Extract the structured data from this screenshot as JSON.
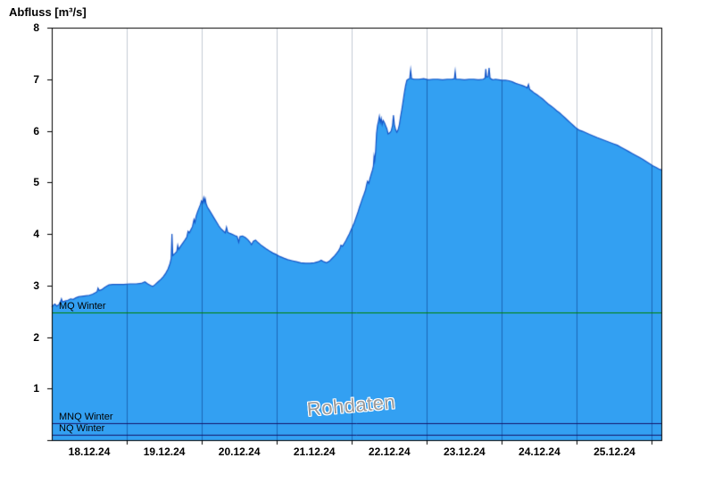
{
  "chart_data": {
    "type": "area",
    "title": "Abfluss [m³/s]",
    "watermark": "Rohdaten",
    "ylabel": "Abfluss [m³/s]",
    "ylim": [
      0,
      8
    ],
    "yticks": [
      0,
      1,
      2,
      3,
      4,
      5,
      6,
      7,
      8
    ],
    "grid": "vertical-daily",
    "legend_position": "none",
    "x_range_hours": [
      0,
      195
    ],
    "x_day_labels": [
      "18.12.24",
      "19.12.24",
      "20.12.24",
      "21.12.24",
      "22.12.24",
      "23.12.24",
      "24.12.24",
      "25.12.24"
    ],
    "x_label_centers_hours": [
      12,
      36,
      60,
      84,
      108,
      132,
      156,
      180
    ],
    "x_gridlines_hours": [
      24,
      48,
      72,
      96,
      120,
      144,
      168,
      192
    ],
    "reference_lines": [
      {
        "label": "MQ Winter",
        "value": 2.47,
        "color": "#008200"
      },
      {
        "label": "MNQ Winter",
        "value": 0.33,
        "color": "#16166a"
      },
      {
        "label": "NQ Winter",
        "value": 0.1,
        "color": "#16166a"
      }
    ],
    "colors": {
      "fill": "#33a0f2",
      "line": "#1455c8",
      "grid_light": "#c4ccd4",
      "grid_on_fill": "#1c67b6",
      "axis": "#000000",
      "watermark": "#9a9a9a"
    },
    "series": [
      {
        "name": "Abfluss Rohdaten",
        "points": [
          [
            0,
            2.58
          ],
          [
            0.6,
            2.62
          ],
          [
            1.0,
            2.64
          ],
          [
            1.6,
            2.6
          ],
          [
            2.3,
            2.63
          ],
          [
            2.9,
            2.7
          ],
          [
            3.1,
            2.74
          ],
          [
            3.4,
            2.68
          ],
          [
            4.3,
            2.7
          ],
          [
            5.1,
            2.71
          ],
          [
            6.0,
            2.74
          ],
          [
            6.9,
            2.73
          ],
          [
            7.7,
            2.76
          ],
          [
            8.6,
            2.78
          ],
          [
            9.7,
            2.79
          ],
          [
            10.8,
            2.8
          ],
          [
            12.0,
            2.81
          ],
          [
            13.1,
            2.83
          ],
          [
            14.0,
            2.86
          ],
          [
            14.5,
            2.88
          ],
          [
            14.8,
            2.95
          ],
          [
            15.2,
            2.9
          ],
          [
            16.0,
            2.92
          ],
          [
            16.9,
            2.96
          ],
          [
            17.7,
            2.99
          ],
          [
            18.3,
            3.01
          ],
          [
            19.5,
            3.02
          ],
          [
            21.0,
            3.02
          ],
          [
            23.0,
            3.02
          ],
          [
            25.0,
            3.03
          ],
          [
            27.0,
            3.03
          ],
          [
            28.6,
            3.04
          ],
          [
            29.8,
            3.07
          ],
          [
            30.7,
            3.03
          ],
          [
            31.6,
            3.0
          ],
          [
            32.3,
            2.98
          ],
          [
            33.1,
            3.02
          ],
          [
            34.0,
            3.07
          ],
          [
            34.9,
            3.12
          ],
          [
            35.7,
            3.17
          ],
          [
            36.5,
            3.24
          ],
          [
            37.2,
            3.32
          ],
          [
            37.8,
            3.42
          ],
          [
            38.2,
            3.52
          ],
          [
            38.45,
            4.0
          ],
          [
            38.7,
            3.58
          ],
          [
            39.4,
            3.62
          ],
          [
            40.0,
            3.66
          ],
          [
            40.3,
            3.78
          ],
          [
            40.6,
            3.7
          ],
          [
            41.2,
            3.76
          ],
          [
            41.9,
            3.82
          ],
          [
            42.6,
            3.88
          ],
          [
            43.2,
            3.94
          ],
          [
            43.6,
            4.05
          ],
          [
            44.0,
            4.02
          ],
          [
            44.5,
            4.08
          ],
          [
            45.0,
            4.14
          ],
          [
            45.5,
            4.28
          ],
          [
            45.8,
            4.22
          ],
          [
            46.2,
            4.35
          ],
          [
            46.7,
            4.44
          ],
          [
            47.1,
            4.5
          ],
          [
            47.5,
            4.56
          ],
          [
            47.9,
            4.64
          ],
          [
            48.3,
            4.6
          ],
          [
            48.6,
            4.7
          ],
          [
            48.9,
            4.62
          ],
          [
            49.1,
            4.68
          ],
          [
            49.4,
            4.58
          ],
          [
            49.8,
            4.52
          ],
          [
            50.4,
            4.46
          ],
          [
            51.0,
            4.4
          ],
          [
            51.6,
            4.34
          ],
          [
            52.2,
            4.28
          ],
          [
            52.8,
            4.22
          ],
          [
            53.4,
            4.16
          ],
          [
            54.1,
            4.1
          ],
          [
            54.8,
            4.06
          ],
          [
            55.5,
            4.02
          ],
          [
            55.9,
            4.13
          ],
          [
            56.3,
            4.03
          ],
          [
            57.0,
            4.01
          ],
          [
            57.8,
            3.99
          ],
          [
            58.5,
            3.97
          ],
          [
            59.3,
            3.95
          ],
          [
            59.8,
            3.84
          ],
          [
            60.2,
            3.95
          ],
          [
            61.0,
            3.96
          ],
          [
            61.9,
            3.93
          ],
          [
            62.7,
            3.89
          ],
          [
            63.4,
            3.84
          ],
          [
            63.9,
            3.79
          ],
          [
            64.5,
            3.86
          ],
          [
            65.2,
            3.88
          ],
          [
            66.0,
            3.83
          ],
          [
            66.8,
            3.79
          ],
          [
            67.7,
            3.75
          ],
          [
            68.6,
            3.71
          ],
          [
            69.6,
            3.67
          ],
          [
            70.7,
            3.63
          ],
          [
            71.8,
            3.6
          ],
          [
            73.0,
            3.56
          ],
          [
            74.2,
            3.53
          ],
          [
            75.5,
            3.5
          ],
          [
            76.8,
            3.48
          ],
          [
            78.2,
            3.46
          ],
          [
            79.6,
            3.44
          ],
          [
            81.1,
            3.43
          ],
          [
            82.6,
            3.43
          ],
          [
            84.0,
            3.44
          ],
          [
            85.3,
            3.46
          ],
          [
            86.2,
            3.49
          ],
          [
            87.0,
            3.46
          ],
          [
            87.9,
            3.44
          ],
          [
            88.8,
            3.47
          ],
          [
            89.6,
            3.52
          ],
          [
            90.4,
            3.57
          ],
          [
            91.1,
            3.62
          ],
          [
            91.7,
            3.67
          ],
          [
            92.2,
            3.72
          ],
          [
            92.5,
            3.78
          ],
          [
            93.0,
            3.76
          ],
          [
            93.5,
            3.81
          ],
          [
            94.1,
            3.87
          ],
          [
            94.6,
            3.93
          ],
          [
            95.2,
            4.0
          ],
          [
            95.7,
            4.07
          ],
          [
            96.2,
            4.14
          ],
          [
            96.8,
            4.22
          ],
          [
            97.3,
            4.31
          ],
          [
            97.9,
            4.41
          ],
          [
            98.4,
            4.51
          ],
          [
            98.9,
            4.6
          ],
          [
            99.4,
            4.69
          ],
          [
            99.9,
            4.77
          ],
          [
            100.4,
            4.86
          ],
          [
            100.7,
            4.95
          ],
          [
            101.0,
            5.02
          ],
          [
            101.4,
            4.98
          ],
          [
            101.8,
            5.08
          ],
          [
            102.2,
            5.16
          ],
          [
            102.6,
            5.24
          ],
          [
            102.9,
            5.32
          ],
          [
            103.1,
            5.5
          ],
          [
            103.3,
            5.42
          ],
          [
            103.6,
            5.6
          ],
          [
            103.9,
            5.95
          ],
          [
            104.2,
            6.1
          ],
          [
            104.5,
            6.18
          ],
          [
            104.8,
            6.28
          ],
          [
            105.1,
            6.16
          ],
          [
            105.4,
            6.24
          ],
          [
            105.7,
            6.12
          ],
          [
            106.0,
            6.2
          ],
          [
            106.4,
            6.16
          ],
          [
            106.8,
            6.1
          ],
          [
            107.2,
            6.04
          ],
          [
            107.6,
            5.94
          ],
          [
            108.1,
            5.96
          ],
          [
            108.6,
            6.0
          ],
          [
            109.0,
            6.1
          ],
          [
            109.3,
            6.3
          ],
          [
            109.6,
            6.12
          ],
          [
            110.0,
            6.02
          ],
          [
            110.4,
            5.97
          ],
          [
            110.8,
            6.02
          ],
          [
            111.2,
            6.12
          ],
          [
            111.6,
            6.28
          ],
          [
            112.0,
            6.42
          ],
          [
            112.4,
            6.58
          ],
          [
            112.8,
            6.74
          ],
          [
            113.2,
            6.88
          ],
          [
            113.6,
            6.98
          ],
          [
            114.0,
            7.0
          ],
          [
            114.5,
            7.01
          ],
          [
            114.8,
            7.18
          ],
          [
            115.1,
            7.01
          ],
          [
            116.0,
            7.0
          ],
          [
            117.5,
            7.0
          ],
          [
            119.0,
            7.01
          ],
          [
            120.5,
            6.99
          ],
          [
            122.0,
            7.0
          ],
          [
            123.5,
            7.0
          ],
          [
            125.0,
            6.99
          ],
          [
            126.5,
            7.0
          ],
          [
            128.0,
            7.0
          ],
          [
            128.8,
            7.01
          ],
          [
            129.05,
            7.15
          ],
          [
            129.3,
            7.0
          ],
          [
            130.5,
            7.0
          ],
          [
            132.0,
            6.99
          ],
          [
            133.5,
            7.0
          ],
          [
            135.0,
            7.0
          ],
          [
            136.5,
            6.99
          ],
          [
            138.0,
            7.0
          ],
          [
            138.6,
            7.02
          ],
          [
            138.85,
            7.2
          ],
          [
            139.1,
            7.04
          ],
          [
            139.6,
            7.05
          ],
          [
            139.9,
            7.22
          ],
          [
            140.2,
            7.02
          ],
          [
            141.0,
            6.99
          ],
          [
            142.0,
            7.0
          ],
          [
            143.0,
            6.99
          ],
          [
            144.0,
            6.98
          ],
          [
            145.2,
            6.98
          ],
          [
            146.3,
            6.97
          ],
          [
            147.3,
            6.95
          ],
          [
            148.4,
            6.92
          ],
          [
            149.4,
            6.9
          ],
          [
            150.4,
            6.88
          ],
          [
            151.3,
            6.86
          ],
          [
            152.1,
            6.83
          ],
          [
            152.5,
            6.9
          ],
          [
            152.9,
            6.8
          ],
          [
            153.6,
            6.77
          ],
          [
            154.4,
            6.73
          ],
          [
            155.2,
            6.7
          ],
          [
            156.1,
            6.66
          ],
          [
            157.0,
            6.62
          ],
          [
            157.9,
            6.57
          ],
          [
            158.8,
            6.52
          ],
          [
            159.7,
            6.48
          ],
          [
            160.6,
            6.44
          ],
          [
            161.5,
            6.39
          ],
          [
            162.4,
            6.35
          ],
          [
            163.3,
            6.3
          ],
          [
            164.2,
            6.25
          ],
          [
            165.1,
            6.2
          ],
          [
            166.0,
            6.15
          ],
          [
            166.9,
            6.1
          ],
          [
            167.8,
            6.05
          ],
          [
            168.8,
            6.01
          ],
          [
            169.8,
            5.99
          ],
          [
            170.9,
            5.96
          ],
          [
            172.0,
            5.93
          ],
          [
            173.2,
            5.9
          ],
          [
            174.4,
            5.87
          ],
          [
            175.7,
            5.84
          ],
          [
            177.0,
            5.81
          ],
          [
            178.3,
            5.78
          ],
          [
            179.6,
            5.75
          ],
          [
            180.9,
            5.72
          ],
          [
            182.1,
            5.68
          ],
          [
            183.3,
            5.64
          ],
          [
            184.5,
            5.6
          ],
          [
            185.7,
            5.56
          ],
          [
            186.9,
            5.52
          ],
          [
            188.1,
            5.48
          ],
          [
            189.2,
            5.44
          ],
          [
            190.3,
            5.4
          ],
          [
            191.3,
            5.36
          ],
          [
            192.3,
            5.32
          ],
          [
            193.3,
            5.29
          ],
          [
            194.2,
            5.26
          ],
          [
            195.0,
            5.24
          ]
        ]
      }
    ]
  }
}
